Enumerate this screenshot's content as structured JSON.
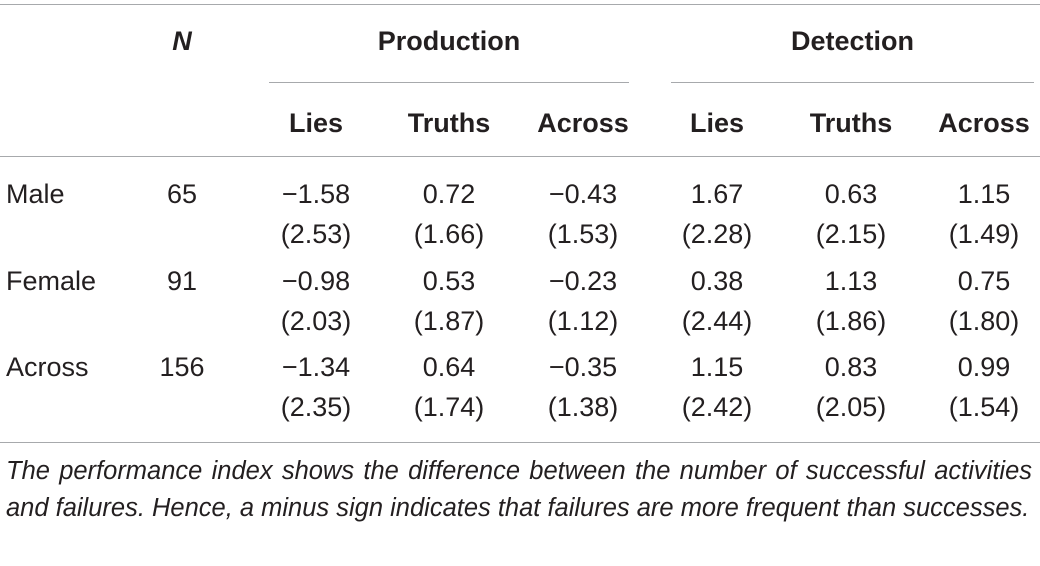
{
  "header": {
    "n_label": "N",
    "groups": [
      {
        "label": "Production",
        "subcolumns": [
          "Lies",
          "Truths",
          "Across"
        ]
      },
      {
        "label": "Detection",
        "subcolumns": [
          "Lies",
          "Truths",
          "Across"
        ]
      }
    ]
  },
  "rows": [
    {
      "label": "Male",
      "n": "65",
      "means": [
        "−1.58",
        "0.72",
        "−0.43",
        "1.67",
        "0.63",
        "1.15"
      ],
      "sds": [
        "(2.53)",
        "(1.66)",
        "(1.53)",
        "(2.28)",
        "(2.15)",
        "(1.49)"
      ]
    },
    {
      "label": "Female",
      "n": "91",
      "means": [
        "−0.98",
        "0.53",
        "−0.23",
        "0.38",
        "1.13",
        "0.75"
      ],
      "sds": [
        "(2.03)",
        "(1.87)",
        "(1.12)",
        "(2.44)",
        "(1.86)",
        "(1.80)"
      ]
    },
    {
      "label": "Across",
      "n": "156",
      "means": [
        "−1.34",
        "0.64",
        "−0.35",
        "1.15",
        "0.83",
        "0.99"
      ],
      "sds": [
        "(2.35)",
        "(1.74)",
        "(1.38)",
        "(2.42)",
        "(2.05)",
        "(1.54)"
      ]
    }
  ],
  "footnote": "The performance index shows the difference between the number of successful activities and failures. Hence, a minus sign indicates that failures are more frequent than successes.",
  "colors": {
    "text": "#231f20",
    "rule": "#a7a9ac"
  }
}
